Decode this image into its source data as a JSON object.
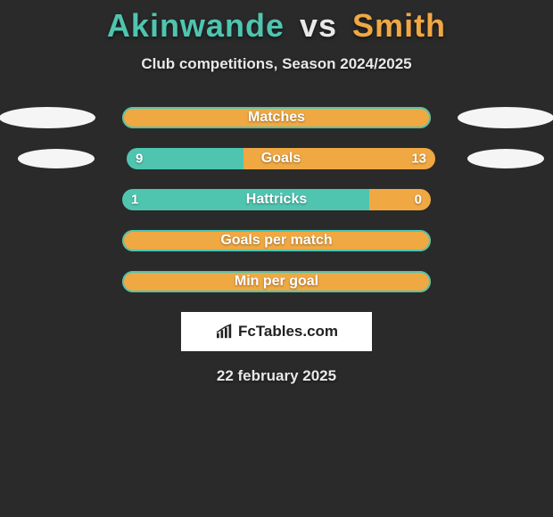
{
  "header": {
    "player1": "Akinwande",
    "vs": "vs",
    "player2": "Smith",
    "subtitle": "Club competitions, Season 2024/2025"
  },
  "colors": {
    "player1": "#4fc5b0",
    "player2": "#f0a843",
    "background": "#2a2a2a",
    "text": "#e8e8e8",
    "ellipse": "#f5f5f5"
  },
  "stats": [
    {
      "label": "Matches",
      "show_ellipses": "full",
      "value_left": null,
      "value_right": null,
      "split_pct": 100,
      "fill_left_color": "#f0a843",
      "fill_right_color": "#f0a843",
      "border_color": "#4fc5b0",
      "border_width": 2
    },
    {
      "label": "Goals",
      "show_ellipses": "small",
      "value_left": "9",
      "value_right": "13",
      "split_pct": 38,
      "fill_left_color": "#4fc5b0",
      "fill_right_color": "#f0a843",
      "border_color": null,
      "border_width": 0
    },
    {
      "label": "Hattricks",
      "show_ellipses": "none",
      "value_left": "1",
      "value_right": "0",
      "split_pct": 80,
      "fill_left_color": "#4fc5b0",
      "fill_right_color": "#f0a843",
      "border_color": null,
      "border_width": 0
    },
    {
      "label": "Goals per match",
      "show_ellipses": "none",
      "value_left": null,
      "value_right": null,
      "split_pct": 100,
      "fill_left_color": "#f0a843",
      "fill_right_color": "#f0a843",
      "border_color": "#4fc5b0",
      "border_width": 2
    },
    {
      "label": "Min per goal",
      "show_ellipses": "none",
      "value_left": null,
      "value_right": null,
      "split_pct": 100,
      "fill_left_color": "#f0a843",
      "fill_right_color": "#f0a843",
      "border_color": "#4fc5b0",
      "border_width": 2
    }
  ],
  "logo": {
    "text": "FcTables.com"
  },
  "footer": {
    "date": "22 february 2025"
  }
}
